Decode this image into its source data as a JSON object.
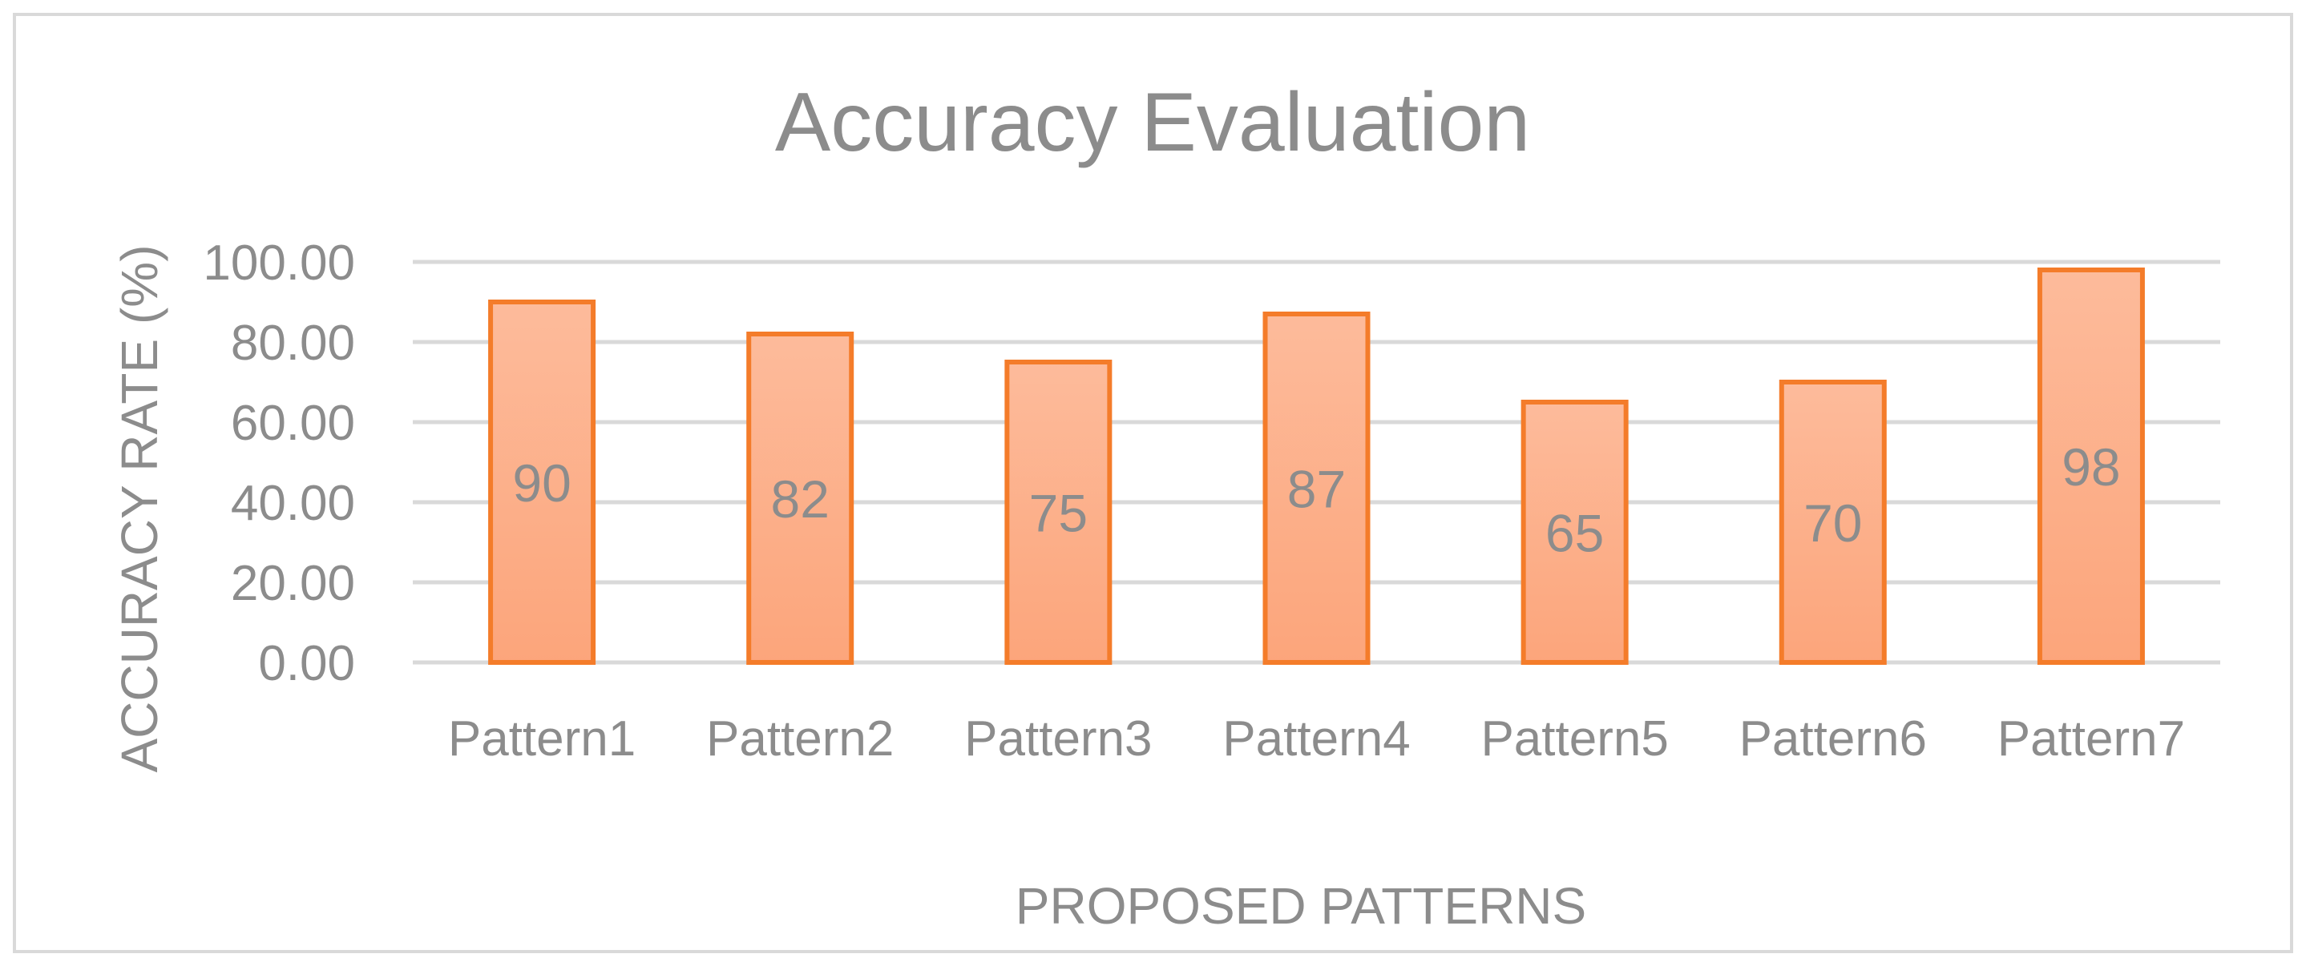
{
  "chart_data": {
    "type": "bar",
    "title": "Accuracy Evaluation",
    "xlabel": "PROPOSED PATTERNS",
    "ylabel": "ACCURACY RATE (%)",
    "categories": [
      "Pattern1",
      "Pattern2",
      "Pattern3",
      "Pattern4",
      "Pattern5",
      "Pattern6",
      "Pattern7"
    ],
    "values": [
      90,
      82,
      75,
      87,
      65,
      70,
      98
    ],
    "data_labels": [
      "90",
      "82",
      "75",
      "87",
      "65",
      "70",
      "98"
    ],
    "yticks": [
      "0.00",
      "20.00",
      "40.00",
      "60.00",
      "80.00",
      "100.00"
    ],
    "ylim": [
      0,
      100
    ],
    "grid": true,
    "legend": "none",
    "colors": {
      "bar_fill_top": "#fdbb9b",
      "bar_fill_bottom": "#fca57b",
      "bar_stroke": "#f47c2a",
      "gridline": "#d9d9d9",
      "text": "#8c8c8c",
      "frame": "#d9d9d9"
    }
  }
}
